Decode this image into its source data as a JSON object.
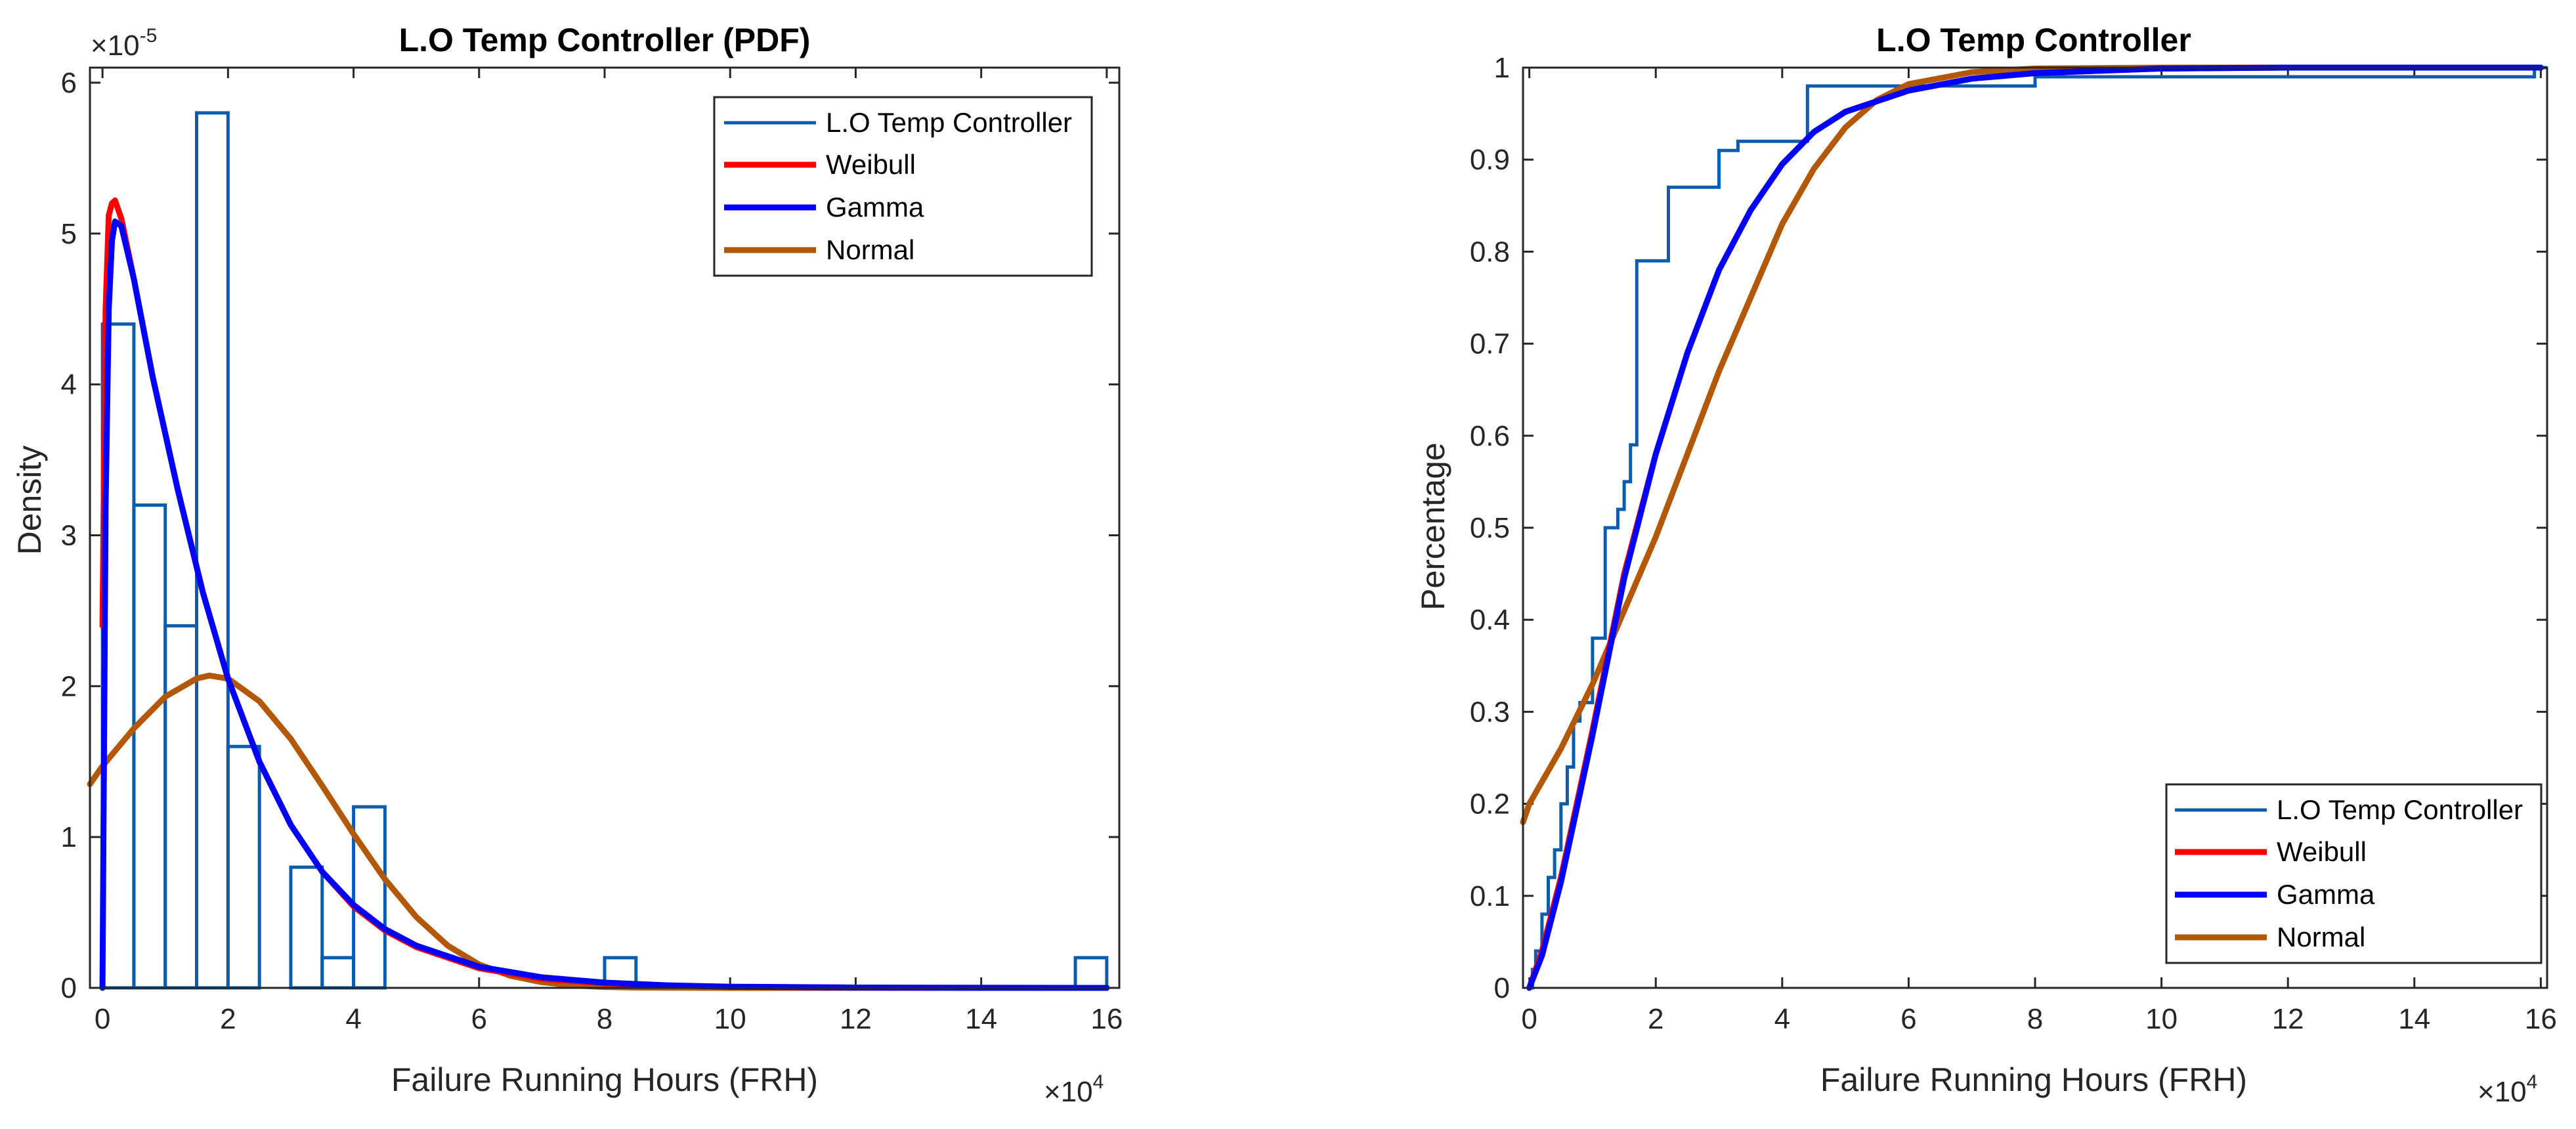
{
  "chart_data": [
    {
      "id": "pdf",
      "type": "histogram+line",
      "title": "L.O Temp Controller (PDF)",
      "xlabel": "Failure Running Hours (FRH)",
      "ylabel": "Density",
      "x_exponent_label": "×10^4",
      "y_exponent_label": "×10^-5",
      "xlim": [
        -0.2,
        16.2
      ],
      "ylim": [
        0,
        6.1
      ],
      "xticks": [
        0,
        2,
        4,
        6,
        8,
        10,
        12,
        14,
        16
      ],
      "xtick_labels": [
        "0",
        "2",
        "4",
        "6",
        "8",
        "10",
        "12",
        "14",
        "16"
      ],
      "yticks": [
        0,
        1,
        2,
        3,
        4,
        5,
        6
      ],
      "ytick_labels": [
        "0",
        "1",
        "2",
        "3",
        "4",
        "5",
        "6"
      ],
      "legend_position": "top-right",
      "histogram": {
        "name": "L.O Temp Controller",
        "color": "#0b5cad",
        "bin_edges": [
          0,
          0.5,
          1,
          1.5,
          2,
          2.5,
          3,
          3.5,
          4,
          4.5,
          5,
          5.5,
          6,
          6.5,
          7,
          7.5,
          8,
          8.5,
          9,
          9.5,
          10,
          10.5,
          11,
          11.5,
          12,
          12.5,
          13,
          13.5,
          14,
          14.5,
          15,
          15.5,
          16
        ],
        "values": [
          4.4,
          3.2,
          2.4,
          5.8,
          1.6,
          0,
          0.8,
          0.2,
          1.2,
          0,
          0,
          0,
          0,
          0,
          0,
          0,
          0.2,
          0,
          0,
          0,
          0,
          0,
          0,
          0,
          0,
          0,
          0,
          0,
          0,
          0,
          0,
          0.2
        ]
      },
      "series": [
        {
          "name": "Weibull",
          "color": "#ff0000",
          "x": [
            0,
            0.05,
            0.1,
            0.15,
            0.2,
            0.3,
            0.5,
            0.8,
            1.2,
            1.6,
            2.0,
            2.5,
            3.0,
            3.5,
            4.0,
            4.5,
            5,
            6,
            7,
            8,
            9,
            10,
            12,
            14,
            16
          ],
          "y": [
            2.4,
            4.5,
            5.12,
            5.2,
            5.22,
            5.1,
            4.7,
            4.05,
            3.3,
            2.62,
            2.05,
            1.5,
            1.08,
            0.77,
            0.54,
            0.38,
            0.27,
            0.13,
            0.06,
            0.03,
            0.015,
            0.007,
            0.002,
            0.0005,
            0
          ]
        },
        {
          "name": "Gamma",
          "color": "#0000ff",
          "x": [
            0,
            0.05,
            0.1,
            0.15,
            0.2,
            0.3,
            0.5,
            0.8,
            1.2,
            1.6,
            2.0,
            2.5,
            3.0,
            3.5,
            4.0,
            4.5,
            5,
            6,
            7,
            8,
            9,
            10,
            12,
            14,
            16
          ],
          "y": [
            0,
            3.2,
            4.5,
            4.95,
            5.08,
            5.05,
            4.7,
            4.05,
            3.3,
            2.62,
            2.05,
            1.5,
            1.08,
            0.77,
            0.55,
            0.39,
            0.28,
            0.14,
            0.07,
            0.035,
            0.017,
            0.008,
            0.002,
            0.0005,
            0
          ]
        },
        {
          "name": "Normal",
          "color": "#b35806",
          "x": [
            -0.2,
            0,
            0.5,
            1.0,
            1.5,
            1.7,
            2.0,
            2.5,
            3.0,
            3.5,
            4.0,
            4.5,
            5.0,
            5.5,
            6.0,
            6.5,
            7.0,
            7.5,
            8.0,
            8.5,
            9.0,
            10,
            12,
            14,
            16
          ],
          "y": [
            1.35,
            1.47,
            1.72,
            1.93,
            2.05,
            2.07,
            2.05,
            1.9,
            1.65,
            1.34,
            1.02,
            0.72,
            0.47,
            0.28,
            0.155,
            0.08,
            0.038,
            0.016,
            0.006,
            0.002,
            0.0008,
            0.0001,
            0,
            0,
            0
          ]
        }
      ]
    },
    {
      "id": "cdf",
      "type": "stairs+line",
      "title": "L.O Temp Controller",
      "xlabel": "Failure Running Hours (FRH)",
      "ylabel": "Percentage",
      "x_exponent_label": "×10^4",
      "xlim": [
        -0.1,
        16.1
      ],
      "ylim": [
        0,
        1
      ],
      "xticks": [
        0,
        2,
        4,
        6,
        8,
        10,
        12,
        14,
        16
      ],
      "xtick_labels": [
        "0",
        "2",
        "4",
        "6",
        "8",
        "10",
        "12",
        "14",
        "16"
      ],
      "yticks": [
        0,
        0.1,
        0.2,
        0.3,
        0.4,
        0.5,
        0.6,
        0.7,
        0.8,
        0.9,
        1
      ],
      "ytick_labels": [
        "0",
        "0.1",
        "0.2",
        "0.3",
        "0.4",
        "0.5",
        "0.6",
        "0.7",
        "0.8",
        "0.9",
        "1"
      ],
      "legend_position": "bottom-right",
      "empirical": {
        "name": "L.O Temp Controller",
        "color": "#0b5cad",
        "x": [
          0,
          0.05,
          0.1,
          0.2,
          0.3,
          0.4,
          0.5,
          0.6,
          0.7,
          0.8,
          1.0,
          1.2,
          1.4,
          1.5,
          1.6,
          1.7,
          1.75,
          2.2,
          3.0,
          3.3,
          3.6,
          4.4,
          8.0,
          15.9
        ],
        "y": [
          0,
          0.02,
          0.04,
          0.08,
          0.12,
          0.15,
          0.2,
          0.24,
          0.29,
          0.31,
          0.38,
          0.5,
          0.52,
          0.55,
          0.59,
          0.79,
          0.79,
          0.87,
          0.91,
          0.92,
          0.92,
          0.98,
          0.99,
          1.0
        ]
      },
      "series": [
        {
          "name": "Weibull",
          "color": "#ff0000",
          "x": [
            0,
            0.2,
            0.5,
            1.0,
            1.5,
            2.0,
            2.5,
            3.0,
            3.5,
            4.0,
            4.5,
            5.0,
            6.0,
            7.0,
            8.0,
            10,
            12,
            14,
            16
          ],
          "y": [
            0,
            0.04,
            0.12,
            0.28,
            0.45,
            0.58,
            0.69,
            0.78,
            0.845,
            0.895,
            0.93,
            0.952,
            0.975,
            0.988,
            0.994,
            0.999,
            1.0,
            1.0,
            1.0
          ]
        },
        {
          "name": "Gamma",
          "color": "#0000ff",
          "x": [
            0,
            0.2,
            0.5,
            1.0,
            1.5,
            2.0,
            2.5,
            3.0,
            3.5,
            4.0,
            4.5,
            5.0,
            6.0,
            7.0,
            8.0,
            10,
            12,
            14,
            16
          ],
          "y": [
            0,
            0.035,
            0.115,
            0.275,
            0.445,
            0.58,
            0.69,
            0.78,
            0.845,
            0.895,
            0.93,
            0.952,
            0.975,
            0.988,
            0.994,
            0.999,
            1.0,
            1.0,
            1.0
          ]
        },
        {
          "name": "Normal",
          "color": "#b35806",
          "x": [
            -0.1,
            0,
            0.5,
            1.0,
            1.5,
            2.0,
            2.5,
            3.0,
            3.5,
            4.0,
            4.5,
            5.0,
            5.5,
            6.0,
            7.0,
            8.0,
            10,
            12,
            14,
            16
          ],
          "y": [
            0.18,
            0.2,
            0.26,
            0.33,
            0.41,
            0.49,
            0.58,
            0.67,
            0.75,
            0.83,
            0.89,
            0.935,
            0.965,
            0.982,
            0.995,
            0.999,
            1.0,
            1.0,
            1.0,
            1.0
          ]
        }
      ]
    }
  ]
}
